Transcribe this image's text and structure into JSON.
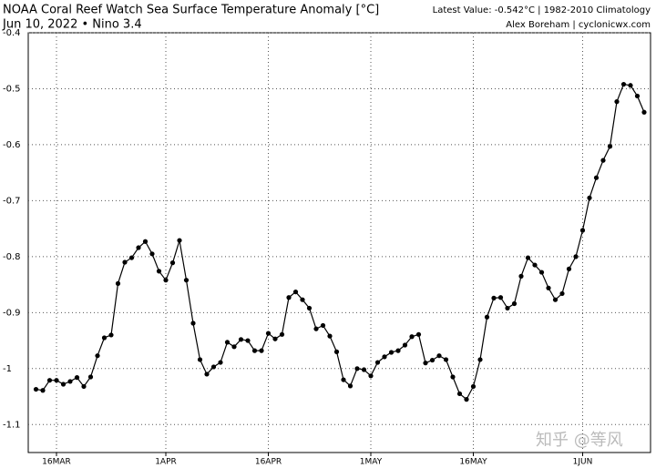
{
  "chart_data": {
    "type": "line",
    "title": "NOAA Coral Reef Watch Sea Surface Temperature Anomaly [°C]",
    "subtitle": "Jun 10, 2022 • Nino 3.4",
    "annotations": [
      "Latest Value: -0.542°C | 1982-2010 Climatology",
      "Alex Boreham | cyclonicwx.com",
      "知乎 @等风"
    ],
    "categories": [
      null,
      null,
      null,
      "16MAR",
      null,
      null,
      null,
      null,
      null,
      null,
      null,
      null,
      null,
      null,
      null,
      null,
      null,
      null,
      null,
      "1APR",
      null,
      null,
      null,
      null,
      null,
      null,
      null,
      null,
      null,
      null,
      null,
      null,
      null,
      null,
      "16APR",
      null,
      null,
      null,
      null,
      null,
      null,
      null,
      null,
      null,
      null,
      null,
      null,
      null,
      null,
      "1MAY",
      null,
      null,
      null,
      null,
      null,
      null,
      null,
      null,
      null,
      null,
      null,
      null,
      null,
      null,
      "16MAY",
      null,
      null,
      null,
      null,
      null,
      null,
      null,
      null,
      null,
      null,
      null,
      null,
      null,
      null,
      null,
      "1JUN",
      null,
      null,
      null,
      null,
      null,
      null,
      null,
      null,
      null
    ],
    "series": [
      {
        "color": "#000000",
        "values": [
          -1.037,
          -1.039,
          -1.021,
          -1.021,
          -1.028,
          -1.023,
          -1.016,
          -1.032,
          -1.015,
          -0.977,
          -0.945,
          -0.94,
          -0.848,
          -0.81,
          -0.802,
          -0.784,
          -0.773,
          -0.795,
          -0.826,
          -0.842,
          -0.811,
          -0.771,
          -0.842,
          -0.919,
          -0.984,
          -1.01,
          -0.997,
          -0.989,
          -0.953,
          -0.961,
          -0.948,
          -0.95,
          -0.968,
          -0.968,
          -0.937,
          -0.947,
          -0.939,
          -0.873,
          -0.863,
          -0.877,
          -0.892,
          -0.929,
          -0.923,
          -0.942,
          -0.97,
          -1.02,
          -1.031,
          -1.0,
          -1.002,
          -1.013,
          -0.989,
          -0.979,
          -0.971,
          -0.968,
          -0.958,
          -0.943,
          -0.939,
          -0.99,
          -0.985,
          -0.977,
          -0.984,
          -1.015,
          -1.045,
          -1.055,
          -1.032,
          -0.984,
          -0.908,
          -0.874,
          -0.873,
          -0.892,
          -0.884,
          -0.835,
          -0.802,
          -0.815,
          -0.828,
          -0.856,
          -0.877,
          -0.866,
          -0.822,
          -0.8,
          -0.753,
          -0.695,
          -0.659,
          -0.628,
          -0.603,
          -0.523,
          -0.492,
          -0.494,
          -0.513,
          -0.542
        ]
      }
    ],
    "ylim": [
      -1.15,
      -0.4
    ],
    "yticks": [
      -0.4,
      -0.5,
      -0.6,
      -0.7,
      -0.8,
      -0.9,
      -1,
      -1.1
    ],
    "grid": true
  }
}
